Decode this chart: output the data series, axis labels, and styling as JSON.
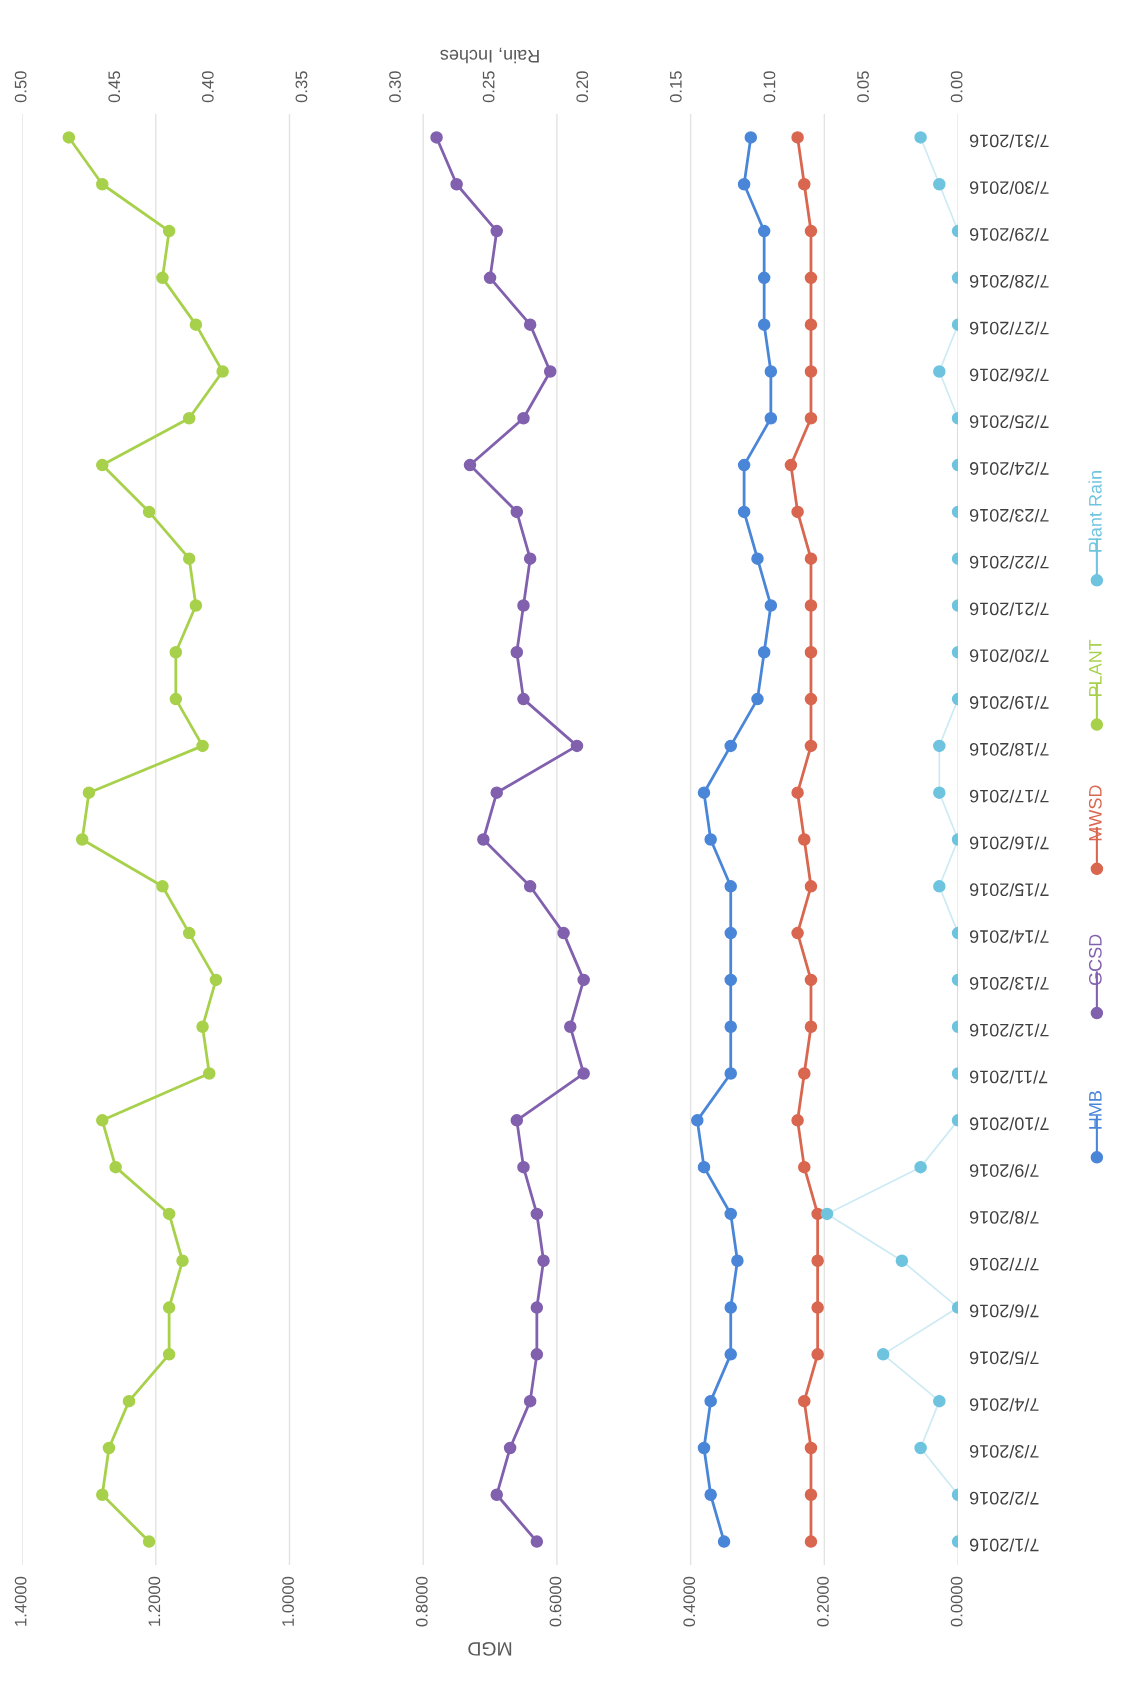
{
  "chart_data": {
    "type": "line",
    "orientation": "horizontal",
    "marker": "circle",
    "grid": "x",
    "legend": "right",
    "xlabel": "MGD",
    "x2label": "Rain, Inches",
    "categories": [
      "7/31/2016",
      "7/30/2016",
      "7/29/2016",
      "7/28/2016",
      "7/27/2016",
      "7/26/2016",
      "7/25/2016",
      "7/24/2016",
      "7/23/2016",
      "7/22/2016",
      "7/21/2016",
      "7/20/2016",
      "7/19/2016",
      "7/18/2016",
      "7/17/2016",
      "7/16/2016",
      "7/15/2016",
      "7/14/2016",
      "7/13/2016",
      "7/12/2016",
      "7/11/2016",
      "7/10/2016",
      "7/9/2016",
      "7/8/2016",
      "7/7/2016",
      "7/6/2016",
      "7/5/2016",
      "7/4/2016",
      "7/3/2016",
      "7/2/2016",
      "7/1/2016"
    ],
    "xlim": [
      1.4,
      0
    ],
    "xticks": [
      {
        "value": 1.4,
        "label": "1.4000"
      },
      {
        "value": 1.2,
        "label": "1.2000"
      },
      {
        "value": 1.0,
        "label": "1.0000"
      },
      {
        "value": 0.8,
        "label": "0.8000"
      },
      {
        "value": 0.6,
        "label": "0.6000"
      },
      {
        "value": 0.4,
        "label": "0.4000"
      },
      {
        "value": 0.2,
        "label": "0.2000"
      },
      {
        "value": 0,
        "label": "0.0000"
      }
    ],
    "x2lim": [
      0.5,
      0
    ],
    "x2ticks": [
      {
        "value": 0.5,
        "label": "0.50"
      },
      {
        "value": 0.45,
        "label": "0.45"
      },
      {
        "value": 0.4,
        "label": "0.40"
      },
      {
        "value": 0.35,
        "label": "0.35"
      },
      {
        "value": 0.3,
        "label": "0.30"
      },
      {
        "value": 0.25,
        "label": "0.25"
      },
      {
        "value": 0.2,
        "label": "0.20"
      },
      {
        "value": 0.15,
        "label": "0.15"
      },
      {
        "value": 0.1,
        "label": "0.10"
      },
      {
        "value": 0.05,
        "label": "0.05"
      },
      {
        "value": 0,
        "label": "0.00"
      }
    ],
    "series": [
      {
        "name": "HMB",
        "color": "#4a86d8",
        "values": [
          0.31,
          0.32,
          0.29,
          0.29,
          0.29,
          0.28,
          0.28,
          0.32,
          0.32,
          0.3,
          0.28,
          0.29,
          0.3,
          0.34,
          0.38,
          0.37,
          0.34,
          0.34,
          0.34,
          0.34,
          0.34,
          0.39,
          0.38,
          0.34,
          0.33,
          0.34,
          0.34,
          0.37,
          0.38,
          0.37,
          0.35
        ]
      },
      {
        "name": "GCSD",
        "color": "#8160ae",
        "values": [
          0.78,
          0.75,
          0.69,
          0.7,
          0.64,
          0.61,
          0.65,
          0.73,
          0.66,
          0.64,
          0.65,
          0.66,
          0.65,
          0.57,
          0.69,
          0.71,
          0.64,
          0.59,
          0.56,
          0.58,
          0.56,
          0.66,
          0.65,
          0.63,
          0.62,
          0.63,
          0.63,
          0.64,
          0.67,
          0.69,
          0.63
        ]
      },
      {
        "name": "MWSD",
        "color": "#d9664f",
        "values": [
          0.24,
          0.23,
          0.22,
          0.22,
          0.22,
          0.22,
          0.22,
          0.25,
          0.24,
          0.22,
          0.22,
          0.22,
          0.22,
          0.22,
          0.24,
          0.23,
          0.22,
          0.24,
          0.22,
          0.22,
          0.23,
          0.24,
          0.23,
          0.21,
          0.21,
          0.21,
          0.21,
          0.23,
          0.22,
          0.22,
          0.22
        ]
      },
      {
        "name": "PLANT",
        "color": "#a8d14b",
        "values": [
          1.33,
          1.28,
          1.18,
          1.19,
          1.14,
          1.1,
          1.15,
          1.28,
          1.21,
          1.15,
          1.14,
          1.17,
          1.17,
          1.13,
          1.3,
          1.31,
          1.19,
          1.15,
          1.11,
          1.13,
          1.12,
          1.28,
          1.26,
          1.18,
          1.16,
          1.18,
          1.18,
          1.24,
          1.27,
          1.28,
          1.21
        ]
      },
      {
        "name": "Plant Rain",
        "color": "#6ec4df",
        "axis": "x2",
        "values": [
          0.02,
          0.01,
          0,
          0,
          0,
          0.01,
          0,
          0,
          0,
          0,
          0,
          0,
          0,
          0.01,
          0.01,
          0,
          0.01,
          0,
          0,
          0,
          0,
          0,
          0.02,
          0.07,
          0.03,
          0,
          0.04,
          0.01,
          0.02,
          0,
          0
        ]
      }
    ]
  }
}
